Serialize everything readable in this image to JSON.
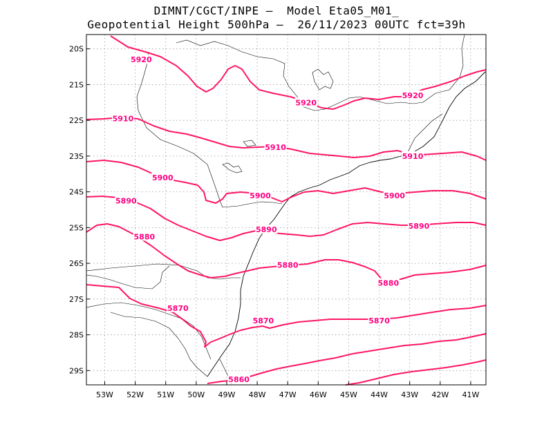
{
  "header": {
    "line1": "DIMNT/CGCT/INPE –  Model Eta05_M01_",
    "line2": "Geopotential Height 500hPa –  26/11/2023 00UTC fct=39h"
  },
  "map": {
    "lat_range": [
      -29.4,
      -19.6
    ],
    "lon_range": [
      -53.6,
      -40.5
    ],
    "lat_ticks": [
      "20S",
      "21S",
      "22S",
      "23S",
      "24S",
      "25S",
      "26S",
      "27S",
      "28S",
      "29S"
    ],
    "lon_ticks": [
      "53W",
      "52W",
      "51W",
      "50W",
      "49W",
      "48W",
      "47W",
      "46W",
      "45W",
      "44W",
      "43W",
      "42W",
      "41W"
    ],
    "contour_color": "#ff1466",
    "contour_labels": [
      {
        "text": "5920",
        "lon": -51.8,
        "lat": -20.3
      },
      {
        "text": "5920",
        "lon": -46.4,
        "lat": -21.5
      },
      {
        "text": "5920",
        "lon": -42.9,
        "lat": -21.3
      },
      {
        "text": "5910",
        "lon": -52.4,
        "lat": -21.95
      },
      {
        "text": "5910",
        "lon": -47.4,
        "lat": -22.75
      },
      {
        "text": "5910",
        "lon": -42.9,
        "lat": -23.0
      },
      {
        "text": "5900",
        "lon": -51.1,
        "lat": -23.6
      },
      {
        "text": "5900",
        "lon": -47.9,
        "lat": -24.1
      },
      {
        "text": "5900",
        "lon": -43.5,
        "lat": -24.1
      },
      {
        "text": "5890",
        "lon": -52.3,
        "lat": -24.25
      },
      {
        "text": "5890",
        "lon": -47.7,
        "lat": -25.05
      },
      {
        "text": "5890",
        "lon": -42.7,
        "lat": -24.95
      },
      {
        "text": "5880",
        "lon": -51.7,
        "lat": -25.25
      },
      {
        "text": "5880",
        "lon": -47.0,
        "lat": -26.05
      },
      {
        "text": "5880",
        "lon": -43.7,
        "lat": -26.55
      },
      {
        "text": "5870",
        "lon": -50.6,
        "lat": -27.25
      },
      {
        "text": "5870",
        "lon": -47.8,
        "lat": -27.6
      },
      {
        "text": "5870",
        "lon": -44.0,
        "lat": -27.6
      },
      {
        "text": "5860",
        "lon": -48.6,
        "lat": -29.25
      }
    ]
  }
}
